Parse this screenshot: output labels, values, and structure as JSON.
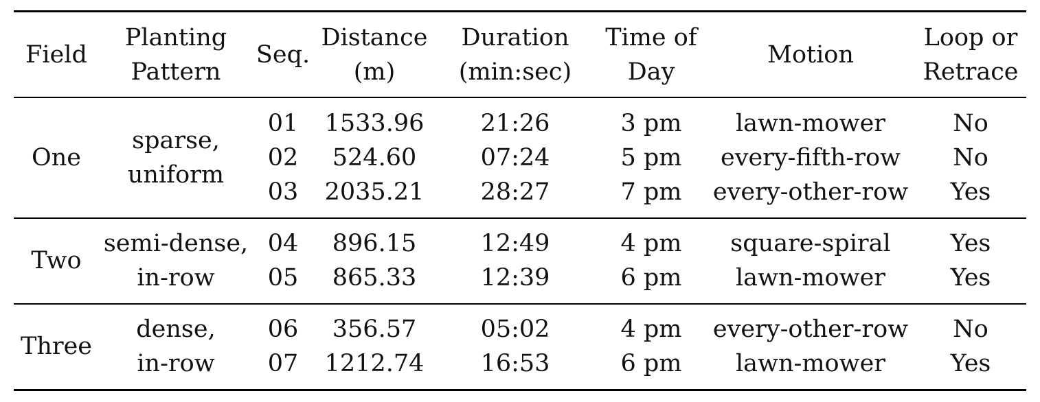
{
  "table": {
    "headers": {
      "field": [
        "Field"
      ],
      "pattern": [
        "Planting",
        "Pattern"
      ],
      "seq": [
        "Seq."
      ],
      "distance": [
        "Distance",
        "(m)"
      ],
      "duration": [
        "Duration",
        "(min:sec)"
      ],
      "time": [
        "Time of",
        "Day"
      ],
      "motion": [
        "Motion"
      ],
      "loop": [
        "Loop or",
        "Retrace"
      ]
    },
    "groups": [
      {
        "field": "One",
        "pattern": [
          "sparse,",
          "uniform"
        ],
        "rows": [
          {
            "seq": "01",
            "distance": "1533.96",
            "duration": "21:26",
            "time": "3 pm",
            "motion": "lawn-mower",
            "loop": "No"
          },
          {
            "seq": "02",
            "distance": "524.60",
            "duration": "07:24",
            "time": "5 pm",
            "motion": "every-fifth-row",
            "loop": "No"
          },
          {
            "seq": "03",
            "distance": "2035.21",
            "duration": "28:27",
            "time": "7 pm",
            "motion": "every-other-row",
            "loop": "Yes"
          }
        ]
      },
      {
        "field": "Two",
        "pattern": [
          "semi-dense,",
          "in-row"
        ],
        "rows": [
          {
            "seq": "04",
            "distance": "896.15",
            "duration": "12:49",
            "time": "4 pm",
            "motion": "square-spiral",
            "loop": "Yes"
          },
          {
            "seq": "05",
            "distance": "865.33",
            "duration": "12:39",
            "time": "6 pm",
            "motion": "lawn-mower",
            "loop": "Yes"
          }
        ]
      },
      {
        "field": "Three",
        "pattern": [
          "dense,",
          "in-row"
        ],
        "rows": [
          {
            "seq": "06",
            "distance": "356.57",
            "duration": "05:02",
            "time": "4 pm",
            "motion": "every-other-row",
            "loop": "No"
          },
          {
            "seq": "07",
            "distance": "1212.74",
            "duration": "16:53",
            "time": "6 pm",
            "motion": "lawn-mower",
            "loop": "Yes"
          }
        ]
      }
    ]
  }
}
